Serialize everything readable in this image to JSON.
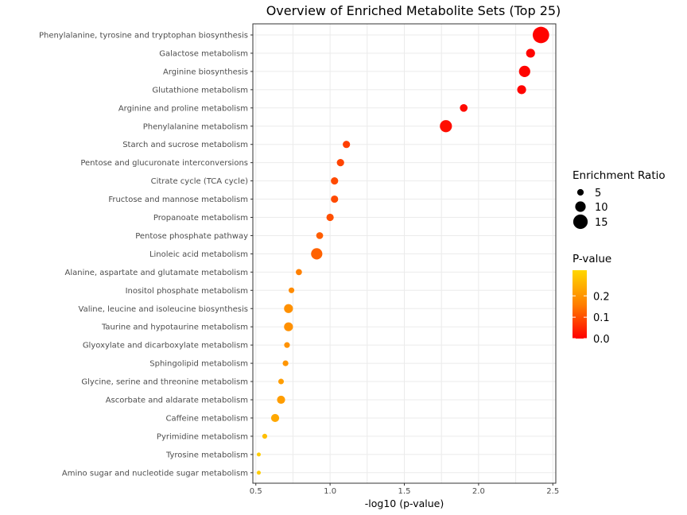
{
  "chart_data": {
    "type": "scatter",
    "title": "Overview of Enriched Metabolite Sets (Top 25)",
    "xlabel": "-log10 (p-value)",
    "xlim": [
      0.48,
      2.52
    ],
    "xticks": [
      "0.5",
      "1.0",
      "1.5",
      "2.0",
      "2.5"
    ],
    "xtick_values": [
      0.5,
      1.0,
      1.5,
      2.0,
      2.5
    ],
    "grid": true,
    "points": [
      {
        "label": "Phenylalanine, tyrosine and tryptophan biosynthesis",
        "x": 2.42,
        "ratio": 17.5,
        "p": 0.004
      },
      {
        "label": "Galactose metabolism",
        "x": 2.35,
        "ratio": 8.0,
        "p": 0.0045
      },
      {
        "label": "Arginine biosynthesis",
        "x": 2.31,
        "ratio": 11.0,
        "p": 0.0049
      },
      {
        "label": "Glutathione metabolism",
        "x": 2.29,
        "ratio": 8.0,
        "p": 0.0051
      },
      {
        "label": "Arginine and proline metabolism",
        "x": 1.9,
        "ratio": 6.5,
        "p": 0.0126
      },
      {
        "label": "Phenylalanine metabolism",
        "x": 1.78,
        "ratio": 12.0,
        "p": 0.0166
      },
      {
        "label": "Starch and sucrose metabolism",
        "x": 1.11,
        "ratio": 6.0,
        "p": 0.0776
      },
      {
        "label": "Pentose and glucuronate interconversions",
        "x": 1.07,
        "ratio": 6.0,
        "p": 0.0851
      },
      {
        "label": "Citrate cycle (TCA cycle)",
        "x": 1.03,
        "ratio": 6.0,
        "p": 0.0933
      },
      {
        "label": "Fructose and mannose metabolism",
        "x": 1.03,
        "ratio": 6.0,
        "p": 0.0933
      },
      {
        "label": "Propanoate metabolism",
        "x": 1.0,
        "ratio": 6.0,
        "p": 0.1
      },
      {
        "label": "Pentose phosphate pathway",
        "x": 0.93,
        "ratio": 5.5,
        "p": 0.1175
      },
      {
        "label": "Linoleic acid metabolism",
        "x": 0.91,
        "ratio": 11.0,
        "p": 0.123
      },
      {
        "label": "Alanine, aspartate and glutamate metabolism",
        "x": 0.79,
        "ratio": 4.5,
        "p": 0.162
      },
      {
        "label": "Inositol phosphate metabolism",
        "x": 0.74,
        "ratio": 4.0,
        "p": 0.182
      },
      {
        "label": "Valine, leucine and isoleucine biosynthesis",
        "x": 0.72,
        "ratio": 8.0,
        "p": 0.191
      },
      {
        "label": "Taurine and hypotaurine metabolism",
        "x": 0.72,
        "ratio": 8.0,
        "p": 0.191
      },
      {
        "label": "Glyoxylate and dicarboxylate metabolism",
        "x": 0.71,
        "ratio": 4.0,
        "p": 0.195
      },
      {
        "label": "Sphingolipid metabolism",
        "x": 0.7,
        "ratio": 4.0,
        "p": 0.2
      },
      {
        "label": "Glycine, serine and threonine metabolism",
        "x": 0.67,
        "ratio": 3.8,
        "p": 0.214
      },
      {
        "label": "Ascorbate and aldarate metabolism",
        "x": 0.67,
        "ratio": 7.0,
        "p": 0.214
      },
      {
        "label": "Caffeine metabolism",
        "x": 0.63,
        "ratio": 7.0,
        "p": 0.234
      },
      {
        "label": "Pyrimidine metabolism",
        "x": 0.56,
        "ratio": 3.0,
        "p": 0.275
      },
      {
        "label": "Tyrosine metabolism",
        "x": 0.52,
        "ratio": 1.8,
        "p": 0.302
      },
      {
        "label": "Amino sugar and nucleotide sugar metabolism",
        "x": 0.52,
        "ratio": 1.8,
        "p": 0.302
      }
    ],
    "legend_size": {
      "title": "Enrichment Ratio",
      "entries": [
        {
          "label": "5",
          "value": 5
        },
        {
          "label": "10",
          "value": 10
        },
        {
          "label": "15",
          "value": 15
        }
      ]
    },
    "legend_color": {
      "title": "P-value",
      "ticks": [
        {
          "label": "0.2",
          "value": 0.2
        },
        {
          "label": "0.1",
          "value": 0.1
        },
        {
          "label": "0.0",
          "value": 0.0
        }
      ],
      "range": [
        0.0,
        0.32
      ],
      "low_color": "#ff0000",
      "mid_color": "#ff7f00",
      "high_color": "#ffd700"
    },
    "legend_placement": "right"
  }
}
